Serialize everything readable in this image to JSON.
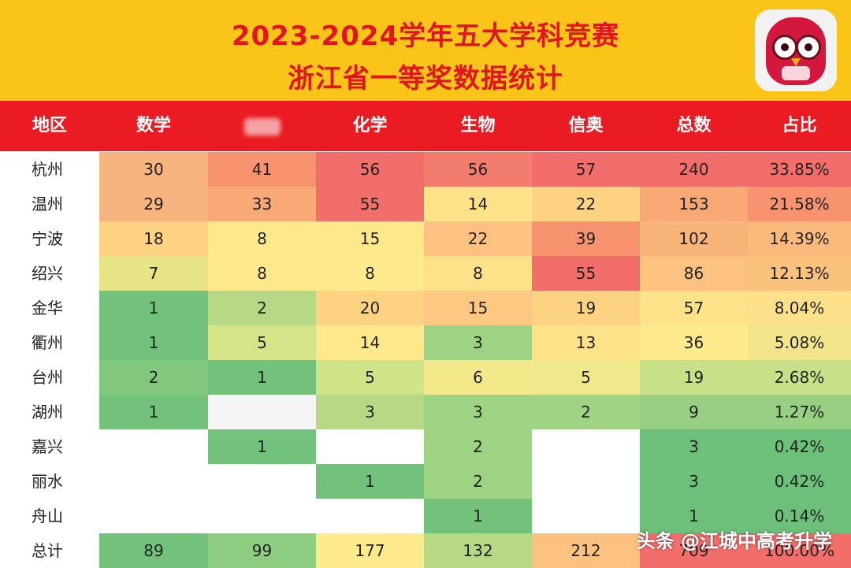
{
  "header": {
    "title_line1": "2023-2024学年五大学科竞赛",
    "title_line2": "浙江省一等奖数据统计",
    "logo_icon": "owl-logo-icon"
  },
  "table": {
    "columns": [
      "地区",
      "数学",
      "",
      "化学",
      "生物",
      "信奥",
      "总数",
      "占比"
    ],
    "rows": [
      {
        "region": "杭州",
        "cells": [
          "30",
          "41",
          "56",
          "56",
          "57",
          "240",
          "33.85%"
        ]
      },
      {
        "region": "温州",
        "cells": [
          "29",
          "33",
          "55",
          "14",
          "22",
          "153",
          "21.58%"
        ]
      },
      {
        "region": "宁波",
        "cells": [
          "18",
          "8",
          "15",
          "22",
          "39",
          "102",
          "14.39%"
        ]
      },
      {
        "region": "绍兴",
        "cells": [
          "7",
          "8",
          "8",
          "8",
          "55",
          "86",
          "12.13%"
        ]
      },
      {
        "region": "金华",
        "cells": [
          "1",
          "2",
          "20",
          "15",
          "19",
          "57",
          "8.04%"
        ]
      },
      {
        "region": "衢州",
        "cells": [
          "1",
          "5",
          "14",
          "3",
          "13",
          "36",
          "5.08%"
        ]
      },
      {
        "region": "台州",
        "cells": [
          "2",
          "1",
          "5",
          "6",
          "5",
          "19",
          "2.68%"
        ]
      },
      {
        "region": "湖州",
        "cells": [
          "1",
          "",
          "3",
          "3",
          "2",
          "9",
          "1.27%"
        ]
      },
      {
        "region": "嘉兴",
        "cells": [
          "",
          "1",
          "",
          "2",
          "",
          "3",
          "0.42%"
        ]
      },
      {
        "region": "丽水",
        "cells": [
          "",
          "",
          "1",
          "2",
          "",
          "3",
          "0.42%"
        ]
      },
      {
        "region": "舟山",
        "cells": [
          "",
          "",
          "",
          "1",
          "",
          "1",
          "0.14%"
        ]
      },
      {
        "region": "总计",
        "cells": [
          "89",
          "99",
          "177",
          "132",
          "212",
          "709",
          "100.00%"
        ]
      }
    ],
    "colors": [
      [
        "#f8b47e",
        "#f6926e",
        "#f26e6b",
        "#f27d6d",
        "#f26e6b",
        "#f26e6b",
        "#f26e6b"
      ],
      [
        "#f8b47e",
        "#f8a874",
        "#f26e6b",
        "#fde28a",
        "#fdd382",
        "#f8a874",
        "#f8936f"
      ],
      [
        "#fdd382",
        "#fde88c",
        "#fde88c",
        "#fdc27f",
        "#f6926e",
        "#f9b47a",
        "#f9ba7c"
      ],
      [
        "#e7e486",
        "#fde88c",
        "#fdeb8d",
        "#fde28a",
        "#f26e6b",
        "#fdc27f",
        "#fbc27d"
      ],
      [
        "#72c27b",
        "#b7d986",
        "#fdd382",
        "#fdc982",
        "#fdd382",
        "#fde28a",
        "#fde08a"
      ],
      [
        "#72c27b",
        "#d5e488",
        "#fde88c",
        "#9ed383",
        "#fde28a",
        "#fdeb8d",
        "#f1e48a"
      ],
      [
        "#82c77e",
        "#72c27b",
        "#cfe388",
        "#f3e98b",
        "#f0e98c",
        "#c8e188",
        "#c8e188"
      ],
      [
        "#72c27b",
        "#f5f5f5",
        "#b7d986",
        "#9ed383",
        "#9ed383",
        "#98d083",
        "#98d083"
      ],
      [
        "#ffffff",
        "#72c27b",
        "#ffffff",
        "#9ed383",
        "#ffffff",
        "#6cc07a",
        "#6cc07a"
      ],
      [
        "#ffffff",
        "#ffffff",
        "#72c27b",
        "#9ed383",
        "#ffffff",
        "#6cc07a",
        "#6cc07a"
      ],
      [
        "#ffffff",
        "#ffffff",
        "#ffffff",
        "#72c27b",
        "#ffffff",
        "#6cc07a",
        "#6cc07a"
      ],
      [
        "#72c27b",
        "#8fcd80",
        "#fdea8d",
        "#b7d986",
        "#fdc27f",
        "#f26e6b",
        "#f26e6b"
      ]
    ]
  },
  "watermark": "头条 @江城中高考升学"
}
